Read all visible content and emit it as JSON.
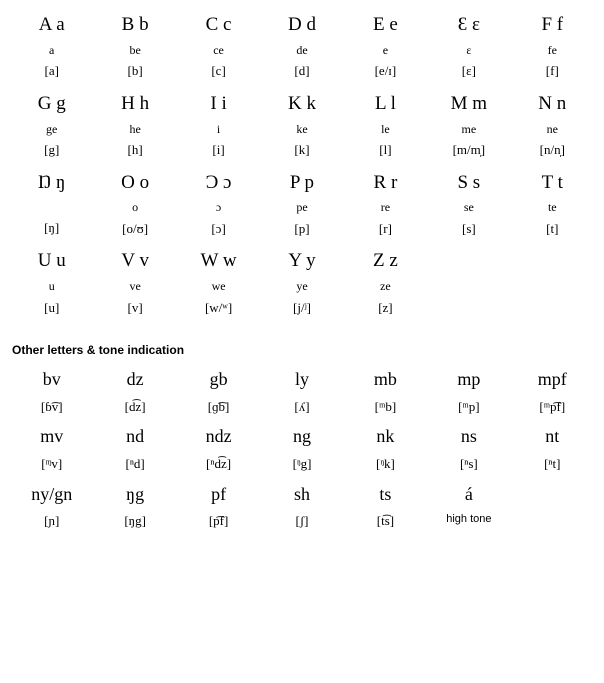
{
  "alphabet": [
    {
      "letter": "A a",
      "name": "a",
      "ipa": "[a]"
    },
    {
      "letter": "B b",
      "name": "be",
      "ipa": "[b]"
    },
    {
      "letter": "C c",
      "name": "ce",
      "ipa": "[c]"
    },
    {
      "letter": "D d",
      "name": "de",
      "ipa": "[d]"
    },
    {
      "letter": "E e",
      "name": "e",
      "ipa": "[e/ɪ]"
    },
    {
      "letter": "Ɛ ɛ",
      "name": "ɛ",
      "ipa": "[ɛ]"
    },
    {
      "letter": "F f",
      "name": "fe",
      "ipa": "[f]"
    },
    {
      "letter": "G g",
      "name": "ge",
      "ipa": "[g]"
    },
    {
      "letter": "H h",
      "name": "he",
      "ipa": "[h]"
    },
    {
      "letter": "I i",
      "name": "i",
      "ipa": "[i]"
    },
    {
      "letter": "K k",
      "name": "ke",
      "ipa": "[k]"
    },
    {
      "letter": "L l",
      "name": "le",
      "ipa": "[l]"
    },
    {
      "letter": "M m",
      "name": "me",
      "ipa": "[m/m̩]"
    },
    {
      "letter": "N n",
      "name": "ne",
      "ipa": "[n/n̩]"
    },
    {
      "letter": "Ŋ ŋ",
      "name": "",
      "ipa": "[ŋ]"
    },
    {
      "letter": "O o",
      "name": "o",
      "ipa": "[o/ʊ]"
    },
    {
      "letter": "Ɔ ɔ",
      "name": "ɔ",
      "ipa": "[ɔ]"
    },
    {
      "letter": "P p",
      "name": "pe",
      "ipa": "[p]"
    },
    {
      "letter": "R r",
      "name": "re",
      "ipa": "[r]"
    },
    {
      "letter": "S s",
      "name": "se",
      "ipa": "[s]"
    },
    {
      "letter": "T t",
      "name": "te",
      "ipa": "[t]"
    },
    {
      "letter": "U u",
      "name": "u",
      "ipa": "[u]"
    },
    {
      "letter": "V v",
      "name": "ve",
      "ipa": "[v]"
    },
    {
      "letter": "W w",
      "name": "we",
      "ipa": "[w/ʷ]"
    },
    {
      "letter": "Y y",
      "name": "ye",
      "ipa": "[j/ʲ]"
    },
    {
      "letter": "Z z",
      "name": "ze",
      "ipa": "[z]"
    }
  ],
  "section_title": "Other letters & tone indication",
  "other": [
    {
      "digraph": "bv",
      "ipa": "[ɓ͡v]"
    },
    {
      "digraph": "dz",
      "ipa": "[d͡z]"
    },
    {
      "digraph": "gb",
      "ipa": "[ɡ͡b]"
    },
    {
      "digraph": "ly",
      "ipa": "[ʎ]"
    },
    {
      "digraph": "mb",
      "ipa": "[ᵐb]"
    },
    {
      "digraph": "mp",
      "ipa": "[ᵐp]"
    },
    {
      "digraph": "mpf",
      "ipa": "[ᵐp͡f]"
    },
    {
      "digraph": "mv",
      "ipa": "[ᶬv]"
    },
    {
      "digraph": "nd",
      "ipa": "[ⁿd]"
    },
    {
      "digraph": "ndz",
      "ipa": "[ⁿd͡z]"
    },
    {
      "digraph": "ng",
      "ipa": "[ᵑg]"
    },
    {
      "digraph": "nk",
      "ipa": "[ᵑk]"
    },
    {
      "digraph": "ns",
      "ipa": "[ⁿs]"
    },
    {
      "digraph": "nt",
      "ipa": "[ⁿt]"
    },
    {
      "digraph": "ny/gn",
      "ipa": "[ɲ]"
    },
    {
      "digraph": "ŋg",
      "ipa": "[ŋg]"
    },
    {
      "digraph": "pf",
      "ipa": "[p͡f]"
    },
    {
      "digraph": "sh",
      "ipa": "[ʃ]"
    },
    {
      "digraph": "ts",
      "ipa": "[t͡s]"
    },
    {
      "digraph": "á",
      "ipa": "high tone",
      "note": true
    }
  ]
}
